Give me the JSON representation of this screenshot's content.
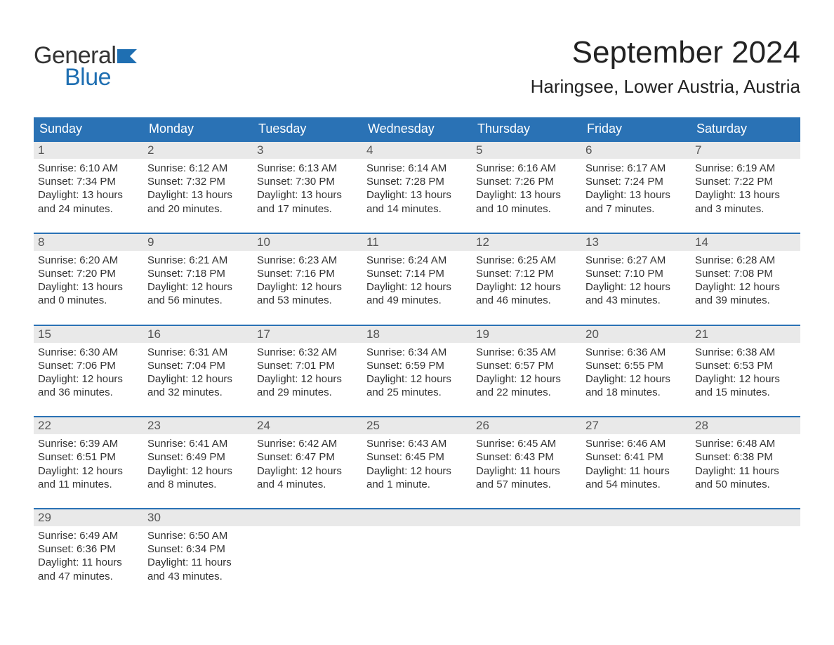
{
  "brand": {
    "word1": "General",
    "word2": "Blue",
    "flag_color": "#1f6fb2",
    "word1_color": "#333333",
    "word2_color": "#1f6fb2"
  },
  "title": "September 2024",
  "location": "Haringsee, Lower Austria, Austria",
  "colors": {
    "header_bg": "#2a72b5",
    "header_text": "#ffffff",
    "daynum_bg": "#e9e9e9",
    "daynum_text": "#555555",
    "body_text": "#333333",
    "week_border": "#2a72b5",
    "page_bg": "#ffffff"
  },
  "typography": {
    "title_fontsize": 44,
    "location_fontsize": 26,
    "dayheader_fontsize": 18,
    "daynum_fontsize": 17,
    "body_fontsize": 15,
    "logo_fontsize": 34
  },
  "day_headers": [
    "Sunday",
    "Monday",
    "Tuesday",
    "Wednesday",
    "Thursday",
    "Friday",
    "Saturday"
  ],
  "weeks": [
    [
      {
        "num": "1",
        "sunrise": "Sunrise: 6:10 AM",
        "sunset": "Sunset: 7:34 PM",
        "daylight1": "Daylight: 13 hours",
        "daylight2": "and 24 minutes."
      },
      {
        "num": "2",
        "sunrise": "Sunrise: 6:12 AM",
        "sunset": "Sunset: 7:32 PM",
        "daylight1": "Daylight: 13 hours",
        "daylight2": "and 20 minutes."
      },
      {
        "num": "3",
        "sunrise": "Sunrise: 6:13 AM",
        "sunset": "Sunset: 7:30 PM",
        "daylight1": "Daylight: 13 hours",
        "daylight2": "and 17 minutes."
      },
      {
        "num": "4",
        "sunrise": "Sunrise: 6:14 AM",
        "sunset": "Sunset: 7:28 PM",
        "daylight1": "Daylight: 13 hours",
        "daylight2": "and 14 minutes."
      },
      {
        "num": "5",
        "sunrise": "Sunrise: 6:16 AM",
        "sunset": "Sunset: 7:26 PM",
        "daylight1": "Daylight: 13 hours",
        "daylight2": "and 10 minutes."
      },
      {
        "num": "6",
        "sunrise": "Sunrise: 6:17 AM",
        "sunset": "Sunset: 7:24 PM",
        "daylight1": "Daylight: 13 hours",
        "daylight2": "and 7 minutes."
      },
      {
        "num": "7",
        "sunrise": "Sunrise: 6:19 AM",
        "sunset": "Sunset: 7:22 PM",
        "daylight1": "Daylight: 13 hours",
        "daylight2": "and 3 minutes."
      }
    ],
    [
      {
        "num": "8",
        "sunrise": "Sunrise: 6:20 AM",
        "sunset": "Sunset: 7:20 PM",
        "daylight1": "Daylight: 13 hours",
        "daylight2": "and 0 minutes."
      },
      {
        "num": "9",
        "sunrise": "Sunrise: 6:21 AM",
        "sunset": "Sunset: 7:18 PM",
        "daylight1": "Daylight: 12 hours",
        "daylight2": "and 56 minutes."
      },
      {
        "num": "10",
        "sunrise": "Sunrise: 6:23 AM",
        "sunset": "Sunset: 7:16 PM",
        "daylight1": "Daylight: 12 hours",
        "daylight2": "and 53 minutes."
      },
      {
        "num": "11",
        "sunrise": "Sunrise: 6:24 AM",
        "sunset": "Sunset: 7:14 PM",
        "daylight1": "Daylight: 12 hours",
        "daylight2": "and 49 minutes."
      },
      {
        "num": "12",
        "sunrise": "Sunrise: 6:25 AM",
        "sunset": "Sunset: 7:12 PM",
        "daylight1": "Daylight: 12 hours",
        "daylight2": "and 46 minutes."
      },
      {
        "num": "13",
        "sunrise": "Sunrise: 6:27 AM",
        "sunset": "Sunset: 7:10 PM",
        "daylight1": "Daylight: 12 hours",
        "daylight2": "and 43 minutes."
      },
      {
        "num": "14",
        "sunrise": "Sunrise: 6:28 AM",
        "sunset": "Sunset: 7:08 PM",
        "daylight1": "Daylight: 12 hours",
        "daylight2": "and 39 minutes."
      }
    ],
    [
      {
        "num": "15",
        "sunrise": "Sunrise: 6:30 AM",
        "sunset": "Sunset: 7:06 PM",
        "daylight1": "Daylight: 12 hours",
        "daylight2": "and 36 minutes."
      },
      {
        "num": "16",
        "sunrise": "Sunrise: 6:31 AM",
        "sunset": "Sunset: 7:04 PM",
        "daylight1": "Daylight: 12 hours",
        "daylight2": "and 32 minutes."
      },
      {
        "num": "17",
        "sunrise": "Sunrise: 6:32 AM",
        "sunset": "Sunset: 7:01 PM",
        "daylight1": "Daylight: 12 hours",
        "daylight2": "and 29 minutes."
      },
      {
        "num": "18",
        "sunrise": "Sunrise: 6:34 AM",
        "sunset": "Sunset: 6:59 PM",
        "daylight1": "Daylight: 12 hours",
        "daylight2": "and 25 minutes."
      },
      {
        "num": "19",
        "sunrise": "Sunrise: 6:35 AM",
        "sunset": "Sunset: 6:57 PM",
        "daylight1": "Daylight: 12 hours",
        "daylight2": "and 22 minutes."
      },
      {
        "num": "20",
        "sunrise": "Sunrise: 6:36 AM",
        "sunset": "Sunset: 6:55 PM",
        "daylight1": "Daylight: 12 hours",
        "daylight2": "and 18 minutes."
      },
      {
        "num": "21",
        "sunrise": "Sunrise: 6:38 AM",
        "sunset": "Sunset: 6:53 PM",
        "daylight1": "Daylight: 12 hours",
        "daylight2": "and 15 minutes."
      }
    ],
    [
      {
        "num": "22",
        "sunrise": "Sunrise: 6:39 AM",
        "sunset": "Sunset: 6:51 PM",
        "daylight1": "Daylight: 12 hours",
        "daylight2": "and 11 minutes."
      },
      {
        "num": "23",
        "sunrise": "Sunrise: 6:41 AM",
        "sunset": "Sunset: 6:49 PM",
        "daylight1": "Daylight: 12 hours",
        "daylight2": "and 8 minutes."
      },
      {
        "num": "24",
        "sunrise": "Sunrise: 6:42 AM",
        "sunset": "Sunset: 6:47 PM",
        "daylight1": "Daylight: 12 hours",
        "daylight2": "and 4 minutes."
      },
      {
        "num": "25",
        "sunrise": "Sunrise: 6:43 AM",
        "sunset": "Sunset: 6:45 PM",
        "daylight1": "Daylight: 12 hours",
        "daylight2": "and 1 minute."
      },
      {
        "num": "26",
        "sunrise": "Sunrise: 6:45 AM",
        "sunset": "Sunset: 6:43 PM",
        "daylight1": "Daylight: 11 hours",
        "daylight2": "and 57 minutes."
      },
      {
        "num": "27",
        "sunrise": "Sunrise: 6:46 AM",
        "sunset": "Sunset: 6:41 PM",
        "daylight1": "Daylight: 11 hours",
        "daylight2": "and 54 minutes."
      },
      {
        "num": "28",
        "sunrise": "Sunrise: 6:48 AM",
        "sunset": "Sunset: 6:38 PM",
        "daylight1": "Daylight: 11 hours",
        "daylight2": "and 50 minutes."
      }
    ],
    [
      {
        "num": "29",
        "sunrise": "Sunrise: 6:49 AM",
        "sunset": "Sunset: 6:36 PM",
        "daylight1": "Daylight: 11 hours",
        "daylight2": "and 47 minutes."
      },
      {
        "num": "30",
        "sunrise": "Sunrise: 6:50 AM",
        "sunset": "Sunset: 6:34 PM",
        "daylight1": "Daylight: 11 hours",
        "daylight2": "and 43 minutes."
      },
      {
        "empty": true
      },
      {
        "empty": true
      },
      {
        "empty": true
      },
      {
        "empty": true
      },
      {
        "empty": true
      }
    ]
  ]
}
